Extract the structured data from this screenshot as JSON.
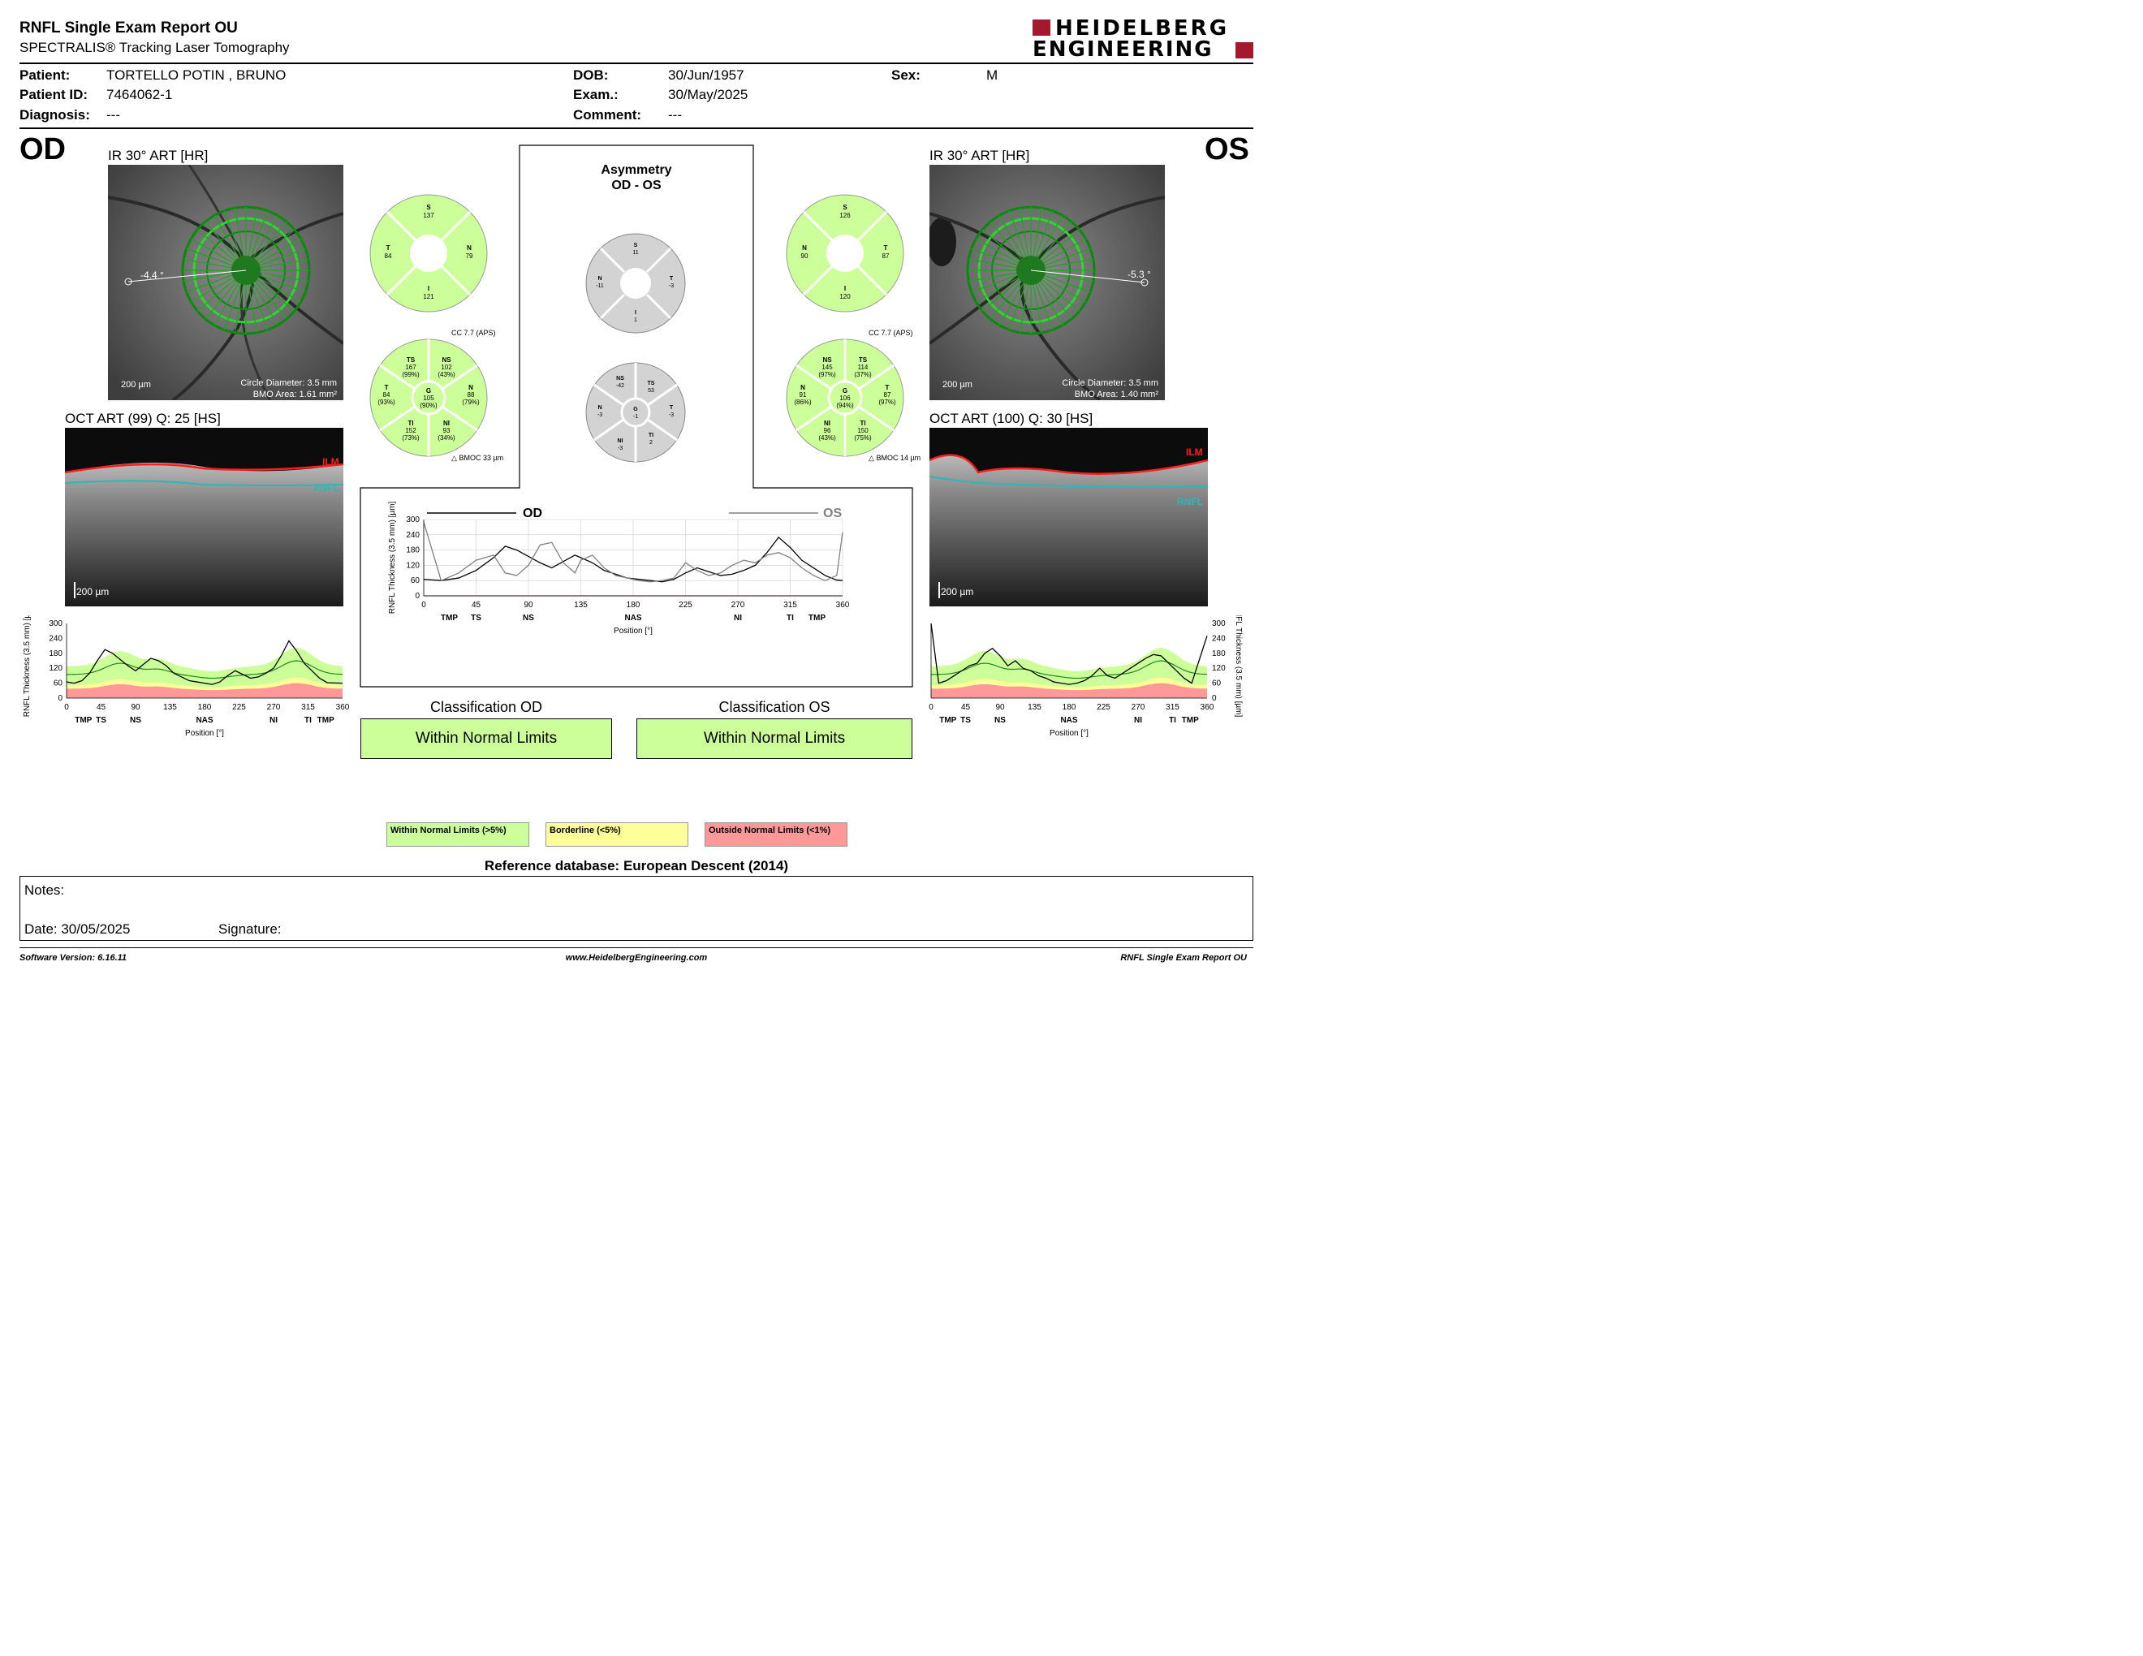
{
  "header": {
    "title": "RNFL Single Exam Report OU",
    "subtitle": "SPECTRALIS® Tracking Laser Tomography",
    "logo_line1": "HEIDELBERG",
    "logo_line2": "ENGINEERING"
  },
  "patient": {
    "patient_label": "Patient:",
    "patient_value": "TORTELLO POTIN , BRUNO",
    "id_label": "Patient ID:",
    "id_value": "7464062-1",
    "diag_label": "Diagnosis:",
    "diag_value": "---",
    "dob_label": "DOB:",
    "dob_value": "30/Jun/1957",
    "exam_label": "Exam.:",
    "exam_value": "30/May/2025",
    "comment_label": "Comment:",
    "comment_value": "---",
    "sex_label": "Sex:",
    "sex_value": "M"
  },
  "od": {
    "eye": "OD",
    "ir_title": "IR 30° ART [HR]",
    "angle": "-4.4 °",
    "scale": "200 µm",
    "circle": "Circle Diameter: 3.5 mm",
    "bmo_area": "BMO Area: 1.61 mm²",
    "oct_title": "OCT ART (99) Q: 25 [HS]",
    "oct_scale": "200 µm",
    "ilm": "ILM",
    "rnfl": "RNFL",
    "quad": {
      "S": "137",
      "T": "84",
      "N": "79",
      "I": "121"
    },
    "cc": "CC 7.7 (APS)",
    "sectors": {
      "TS": [
        "TS",
        "167",
        "(99%)"
      ],
      "NS": [
        "NS",
        "102",
        "(43%)"
      ],
      "T": [
        "T",
        "84",
        "(93%)"
      ],
      "G": [
        "G",
        "105",
        "(90%)"
      ],
      "N": [
        "N",
        "88",
        "(79%)"
      ],
      "TI": [
        "TI",
        "152",
        "(73%)"
      ],
      "NI": [
        "NI",
        "93",
        "(34%)"
      ]
    },
    "bmoc": "BMOC 33 µm",
    "classif_title": "Classification OD",
    "classif": "Within Normal Limits"
  },
  "os": {
    "eye": "OS",
    "ir_title": "IR 30° ART [HR]",
    "angle": "-5.3 °",
    "scale": "200 µm",
    "circle": "Circle Diameter: 3.5 mm",
    "bmo_area": "BMO Area: 1.40 mm²",
    "oct_title": "OCT ART (100) Q: 30 [HS]",
    "oct_scale": "200 µm",
    "ilm": "ILM",
    "rnfl": "RNFL",
    "quad": {
      "S": "126",
      "N": "90",
      "T": "87",
      "I": "120"
    },
    "cc": "CC 7.7 (APS)",
    "sectors": {
      "NS": [
        "NS",
        "145",
        "(97%)"
      ],
      "TS": [
        "TS",
        "114",
        "(37%)"
      ],
      "N": [
        "N",
        "91",
        "(86%)"
      ],
      "G": [
        "G",
        "106",
        "(94%)"
      ],
      "T": [
        "T",
        "87",
        "(97%)"
      ],
      "NI": [
        "NI",
        "96",
        "(43%)"
      ],
      "TI": [
        "TI",
        "150",
        "(75%)"
      ]
    },
    "bmoc": "BMOC 14 µm",
    "classif_title": "Classification OS",
    "classif": "Within Normal Limits"
  },
  "asymmetry": {
    "title1": "Asymmetry",
    "title2": "OD - OS",
    "quad": {
      "S": "11",
      "N": "-11",
      "T": "-3",
      "I": "1"
    },
    "sectors": {
      "NS": "-42",
      "TS": "53",
      "N": "-3",
      "G": "-1",
      "T": "-3",
      "NI": "-3",
      "TI": "2"
    }
  },
  "chart_data": [
    {
      "type": "line",
      "title": "",
      "series": [
        {
          "name": "OD",
          "x": [
            0,
            15,
            30,
            45,
            60,
            70,
            80,
            90,
            100,
            110,
            120,
            130,
            135,
            145,
            155,
            165,
            175,
            185,
            195,
            205,
            215,
            225,
            235,
            245,
            255,
            265,
            275,
            285,
            295,
            305,
            315,
            325,
            335,
            345,
            355,
            360
          ],
          "values": [
            65,
            60,
            70,
            100,
            150,
            195,
            180,
            155,
            130,
            110,
            135,
            160,
            150,
            130,
            100,
            85,
            70,
            65,
            60,
            55,
            65,
            90,
            110,
            95,
            80,
            85,
            100,
            120,
            170,
            230,
            190,
            140,
            110,
            80,
            62,
            60
          ],
          "color": "#000000"
        },
        {
          "name": "OS",
          "x": [
            0,
            15,
            30,
            45,
            60,
            70,
            80,
            90,
            100,
            110,
            120,
            130,
            135,
            145,
            155,
            165,
            175,
            185,
            195,
            205,
            215,
            225,
            235,
            245,
            255,
            265,
            275,
            285,
            295,
            305,
            315,
            325,
            335,
            345,
            355,
            360
          ],
          "values": [
            290,
            60,
            90,
            140,
            160,
            90,
            80,
            120,
            200,
            210,
            130,
            90,
            140,
            160,
            110,
            80,
            70,
            60,
            55,
            60,
            70,
            130,
            100,
            80,
            90,
            120,
            140,
            130,
            160,
            170,
            150,
            110,
            80,
            60,
            80,
            250
          ],
          "color": "#808080"
        }
      ],
      "xlabel": "Position [°]",
      "ylabel": "RNFL Thickness (3.5 mm) [µm]",
      "xlim": [
        0,
        360
      ],
      "ylim": [
        0,
        300
      ],
      "xticks": [
        "0",
        "45",
        "90",
        "135",
        "180",
        "225",
        "270",
        "315",
        "360"
      ],
      "yticks": [
        "0",
        "60",
        "120",
        "180",
        "240",
        "300"
      ],
      "sector_labels": [
        "TMP",
        "TS",
        "NS",
        "NAS",
        "NI",
        "TI",
        "TMP"
      ]
    },
    {
      "type": "area",
      "title": "OD",
      "series": [
        {
          "name": "OD",
          "values": [
            65,
            60,
            70,
            100,
            150,
            195,
            180,
            155,
            130,
            110,
            135,
            160,
            150,
            130,
            100,
            85,
            70,
            65,
            60,
            55,
            65,
            90,
            110,
            95,
            80,
            85,
            100,
            120,
            170,
            230,
            190,
            140,
            110,
            80,
            62,
            60
          ],
          "color": "#000000"
        }
      ],
      "x": [
        0,
        10,
        20,
        30,
        40,
        50,
        60,
        70,
        80,
        90,
        100,
        110,
        120,
        130,
        140,
        150,
        160,
        170,
        180,
        190,
        200,
        210,
        220,
        230,
        240,
        250,
        260,
        270,
        280,
        290,
        300,
        310,
        320,
        330,
        340,
        360
      ],
      "xlabel": "Position [°]",
      "ylabel": "RNFL Thickness (3.5 mm) [µm]",
      "xlim": [
        0,
        360
      ],
      "ylim": [
        0,
        300
      ],
      "xticks": [
        "0",
        "45",
        "90",
        "135",
        "180",
        "225",
        "270",
        "315",
        "360"
      ],
      "yticks": [
        "0",
        "60",
        "120",
        "180",
        "240",
        "300"
      ],
      "sector_labels": [
        "TMP",
        "TS",
        "NS",
        "NAS",
        "NI",
        "TI",
        "TMP"
      ]
    },
    {
      "type": "area",
      "title": "OS",
      "series": [
        {
          "name": "OS",
          "values": [
            300,
            60,
            70,
            90,
            110,
            130,
            140,
            180,
            200,
            170,
            130,
            150,
            120,
            110,
            90,
            80,
            65,
            60,
            55,
            60,
            70,
            90,
            120,
            90,
            80,
            100,
            120,
            140,
            160,
            175,
            170,
            140,
            110,
            80,
            60,
            250
          ],
          "color": "#000000"
        }
      ],
      "x": [
        0,
        10,
        20,
        30,
        40,
        50,
        60,
        70,
        80,
        90,
        100,
        110,
        120,
        130,
        140,
        150,
        160,
        170,
        180,
        190,
        200,
        210,
        220,
        230,
        240,
        250,
        260,
        270,
        280,
        290,
        300,
        310,
        320,
        330,
        340,
        360
      ],
      "xlabel": "Position [°]",
      "ylabel": "RNFL Thickness (3.5 mm) [µm]",
      "xlim": [
        0,
        360
      ],
      "ylim": [
        0,
        300
      ],
      "xticks": [
        "0",
        "45",
        "90",
        "135",
        "180",
        "225",
        "270",
        "315",
        "360"
      ],
      "yticks": [
        "0",
        "60",
        "120",
        "180",
        "240",
        "300"
      ],
      "sector_labels": [
        "TMP",
        "TS",
        "NS",
        "NAS",
        "NI",
        "TI",
        "TMP"
      ]
    }
  ],
  "center_legend": {
    "od": "OD",
    "os": "OS"
  },
  "legend": {
    "wnl": "Within Normal Limits (>5%)",
    "bl": "Borderline (<5%)",
    "onl": "Outside Normal Limits (<1%)"
  },
  "reference": "Reference database: European Descent (2014)",
  "notes": {
    "label": "Notes:",
    "date": "Date: 30/05/2025",
    "signature": "Signature:"
  },
  "footer": {
    "version": "Software Version: 6.16.11",
    "url": "www.HeidelbergEngineering.com",
    "report": "RNFL Single Exam Report OU"
  },
  "colors": {
    "normal": "#ccff99",
    "border": "#ffff99",
    "outside": "#ff9999",
    "asym": "#d3d3d3",
    "logo": "#a5192e"
  }
}
